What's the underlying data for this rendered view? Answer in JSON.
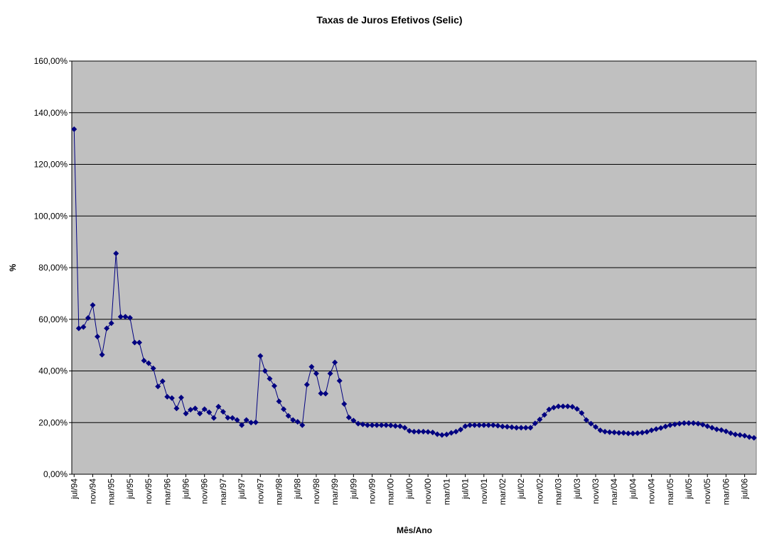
{
  "chart_data": {
    "type": "line",
    "title": "Taxas de Juros Efetivos (Selic)",
    "x_label": "Mês/Ano",
    "y_label": "%",
    "categories": [
      "jul/94",
      null,
      null,
      null,
      "nov/94",
      null,
      null,
      null,
      "mar/95",
      null,
      null,
      null,
      "jul/95",
      null,
      null,
      null,
      "nov/95",
      null,
      null,
      null,
      "mar/96",
      null,
      null,
      null,
      "jul/96",
      null,
      null,
      null,
      "nov/96",
      null,
      null,
      null,
      "mar/97",
      null,
      null,
      null,
      "jul/97",
      null,
      null,
      null,
      "nov/97",
      null,
      null,
      null,
      "mar/98",
      null,
      null,
      null,
      "jul/98",
      null,
      null,
      null,
      "nov/98",
      null,
      null,
      null,
      "mar/99",
      null,
      null,
      null,
      "jul/99",
      null,
      null,
      null,
      "nov/99",
      null,
      null,
      null,
      "mar/00",
      null,
      null,
      null,
      "jul/00",
      null,
      null,
      null,
      "nov/00",
      null,
      null,
      null,
      "mar/01",
      null,
      null,
      null,
      "jul/01",
      null,
      null,
      null,
      "nov/01",
      null,
      null,
      null,
      "mar/02",
      null,
      null,
      null,
      "jul/02",
      null,
      null,
      null,
      "nov/02",
      null,
      null,
      null,
      "mar/03",
      null,
      null,
      null,
      "jul/03",
      null,
      null,
      null,
      "nov/03",
      null,
      null,
      null,
      "mar/04",
      null,
      null,
      null,
      "jul/04",
      null,
      null,
      null,
      "nov/04",
      null,
      null,
      null,
      "mar/05",
      null,
      null,
      null,
      "jul/05",
      null,
      null,
      null,
      "nov/05",
      null,
      null,
      null,
      "mar/06",
      null,
      null,
      null,
      "jul/06",
      null,
      null
    ],
    "values": [
      133.6,
      56.5,
      57,
      60.5,
      65.5,
      53.3,
      46.3,
      56.5,
      58.5,
      85.5,
      61,
      61,
      60.6,
      51,
      51,
      44,
      43,
      41,
      34,
      36,
      30,
      29.5,
      25.5,
      29.7,
      23.5,
      25,
      25.5,
      23.5,
      25.2,
      24,
      21.8,
      26.2,
      24.2,
      21.9,
      21.8,
      21,
      19,
      21,
      20,
      20.1,
      45.8,
      40,
      37,
      34.2,
      28.2,
      25.2,
      22.6,
      21,
      20.3,
      19,
      34.7,
      41.6,
      39,
      31.3,
      31.2,
      39,
      43.3,
      36.2,
      27.2,
      22,
      20.8,
      19.6,
      19.3,
      19,
      19,
      19,
      19,
      19,
      18.9,
      18.7,
      18.6,
      18,
      16.8,
      16.5,
      16.5,
      16.5,
      16.4,
      16.2,
      15.5,
      15.2,
      15.4,
      16,
      16.5,
      17.3,
      18.6,
      19,
      19,
      19,
      19,
      19,
      19,
      18.8,
      18.5,
      18.4,
      18.2,
      18,
      18,
      18,
      18,
      19.7,
      21.2,
      23,
      25.1,
      25.8,
      26.3,
      26.3,
      26.3,
      26.1,
      25.3,
      23.7,
      21,
      19.6,
      18.3,
      17,
      16.5,
      16.3,
      16.2,
      16,
      16,
      15.8,
      15.8,
      15.9,
      16.1,
      16.4,
      17,
      17.5,
      17.9,
      18.5,
      19,
      19.3,
      19.6,
      19.8,
      19.8,
      19.8,
      19.6,
      19.2,
      18.6,
      18,
      17.4,
      17.1,
      16.6,
      15.9,
      15.4,
      15.2,
      14.9,
      14.4,
      14.1
    ],
    "color": "#000080",
    "plot_background": "#c0c0c0",
    "grid": true,
    "ylim": [
      0,
      160
    ],
    "yticks": [
      {
        "value": 0,
        "label": "0,00%"
      },
      {
        "value": 20,
        "label": "20,00%"
      },
      {
        "value": 40,
        "label": "40,00%"
      },
      {
        "value": 60,
        "label": "60,00%"
      },
      {
        "value": 80,
        "label": "80,00%"
      },
      {
        "value": 100,
        "label": "100,00%"
      },
      {
        "value": 120,
        "label": "120,00%"
      },
      {
        "value": 140,
        "label": "140,00%"
      },
      {
        "value": 160,
        "label": "160,00%"
      }
    ]
  }
}
